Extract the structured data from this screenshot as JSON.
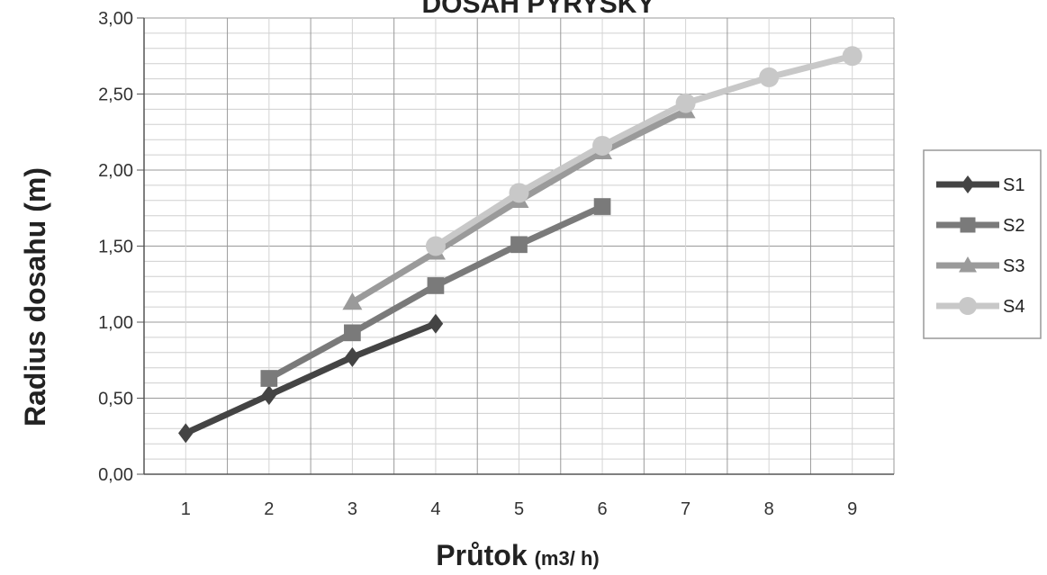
{
  "chart_data": {
    "type": "line",
    "title": "DOSAH PYRYSKY",
    "xlabel": "Průtok",
    "xlabel_unit": "(m3/ h)",
    "ylabel": "Radius dosahu (m)",
    "categories": [
      "1",
      "2",
      "3",
      "4",
      "5",
      "6",
      "7",
      "8",
      "9"
    ],
    "yticks": [
      "0,00",
      "0,50",
      "1,00",
      "1,50",
      "2,00",
      "2,50",
      "3,00"
    ],
    "ylim": [
      0,
      3
    ],
    "grid": true,
    "legend_position": "right",
    "series": [
      {
        "name": "S1",
        "marker": "diamond",
        "color": "#444444",
        "x": [
          1,
          2,
          3,
          4
        ],
        "values": [
          0.27,
          0.52,
          0.77,
          0.99
        ]
      },
      {
        "name": "S2",
        "marker": "square",
        "color": "#7a7a7a",
        "x": [
          2,
          3,
          4,
          5,
          6
        ],
        "values": [
          0.63,
          0.93,
          1.24,
          1.51,
          1.76
        ]
      },
      {
        "name": "S3",
        "marker": "triangle",
        "color": "#9a9a9a",
        "x": [
          3,
          4,
          5,
          6,
          7
        ],
        "values": [
          1.13,
          1.46,
          1.8,
          2.12,
          2.39
        ]
      },
      {
        "name": "S4",
        "marker": "circle",
        "color": "#c8c8c8",
        "x": [
          4,
          5,
          6,
          7,
          8,
          9
        ],
        "values": [
          1.5,
          1.85,
          2.16,
          2.44,
          2.61,
          2.75
        ]
      }
    ]
  }
}
